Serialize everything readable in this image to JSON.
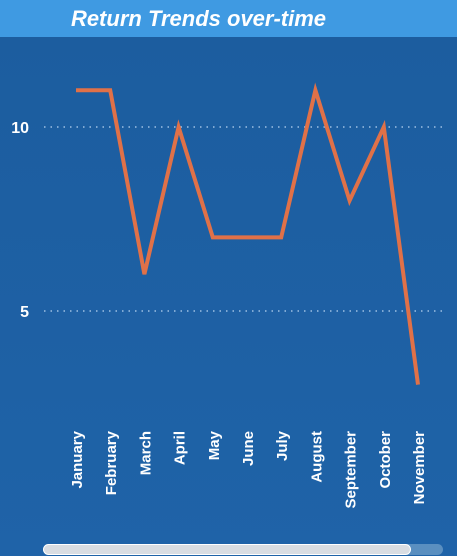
{
  "title": "Return Trends over-time",
  "colors": {
    "background": "#1d5fa1",
    "title_bar": "#3f9ae2",
    "line": "#e07148",
    "text": "#ffffff"
  },
  "chart_data": {
    "type": "line",
    "title": "Return Trends over-time",
    "xlabel": "",
    "ylabel": "",
    "categories": [
      "January",
      "February",
      "March",
      "April",
      "May",
      "June",
      "July",
      "August",
      "September",
      "October",
      "November"
    ],
    "series": [
      {
        "values": [
          11,
          11,
          6,
          10,
          7,
          7,
          7,
          11,
          8,
          10,
          3
        ]
      }
    ],
    "y_ticks": [
      5,
      10
    ],
    "ylim": [
      2,
      13
    ],
    "grid": "horizontal-dotted"
  },
  "scrollbar": {
    "position": 0.92
  }
}
